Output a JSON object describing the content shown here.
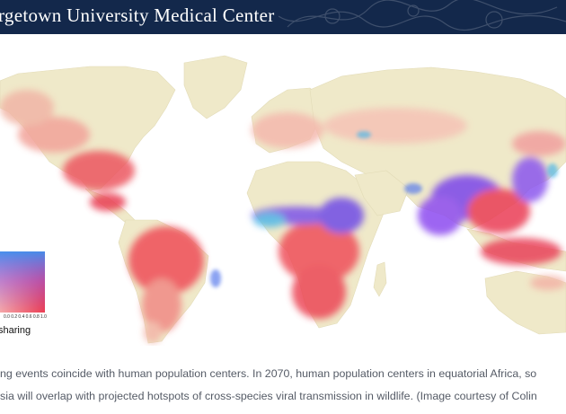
{
  "header": {
    "title": "rgetown University Medical Center"
  },
  "legend": {
    "label": "sharing",
    "ticks": [
      "0.0",
      "0.2",
      "0.4",
      "0.6",
      "0.8",
      "1.0"
    ]
  },
  "caption": {
    "line1": "ng events coincide with human population centers. In 2070, human population centers in equatorial Africa, so",
    "line2": "sia will overlap with projected hotspots of cross-species viral transmission in wildlife. (Image courtesy of Colin"
  },
  "colors": {
    "header_bg": "#13284b",
    "land_base": "#efe9c9",
    "hotspot_red": "#ec4a57",
    "hotspot_purple": "#8a3cf0",
    "hotspot_blue": "#4fb7e8",
    "ocean": "#ffffff"
  }
}
